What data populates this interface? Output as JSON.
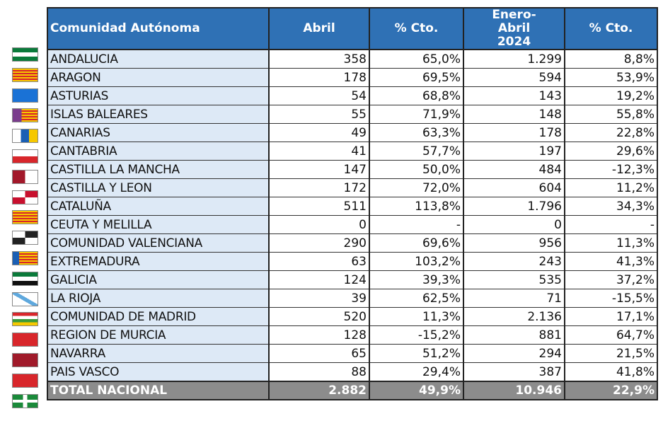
{
  "headers": {
    "name": "Comunidad Autónoma",
    "abril": "Abril",
    "cto1": "% Cto.",
    "enero_abril": "Enero-Abril 2024",
    "cto2": "% Cto."
  },
  "rows": [
    {
      "name": "ANDALUCIA",
      "abril": "358",
      "cto1": "65,0%",
      "ea": "1.299",
      "cto2": "8,8%",
      "flag": "linear-gradient(#0a7a3a 33%,#fff 33% 66%,#0a7a3a 66%)"
    },
    {
      "name": "ARAGON",
      "abril": "178",
      "cto1": "69,5%",
      "ea": "594",
      "cto2": "53,9%",
      "flag": "repeating-linear-gradient(#f6c800 0 2px,#d8262b 2px 4px)"
    },
    {
      "name": "ASTURIAS",
      "abril": "54",
      "cto1": "68,8%",
      "ea": "143",
      "cto2": "19,2%",
      "flag": "#1a72d6"
    },
    {
      "name": "ISLAS BALEARES",
      "abril": "55",
      "cto1": "71,9%",
      "ea": "148",
      "cto2": "55,8%",
      "flag": "linear-gradient(90deg,#7a3c8c 35%,transparent 35%),repeating-linear-gradient(#f6c800 0 2px,#d8262b 2px 4px)"
    },
    {
      "name": "CANARIAS",
      "abril": "49",
      "cto1": "63,3%",
      "ea": "178",
      "cto2": "22,8%",
      "flag": "linear-gradient(90deg,#fff 33%,#1a5fb4 33% 66%,#f6c800 66%)"
    },
    {
      "name": "CANTABRIA",
      "abril": "41",
      "cto1": "57,7%",
      "ea": "197",
      "cto2": "29,6%",
      "flag": "linear-gradient(#fff 50%,#d8262b 50%)"
    },
    {
      "name": "CASTILLA  LA MANCHA",
      "abril": "147",
      "cto1": "50,0%",
      "ea": "484",
      "cto2": "-12,3%",
      "flag": "linear-gradient(90deg,#a2182a 50%,#fff 50%)"
    },
    {
      "name": "CASTILLA Y LEON",
      "abril": "172",
      "cto1": "72,0%",
      "ea": "604",
      "cto2": "11,2%",
      "flag": "conic-gradient(#c8102e 0 25%,#fff 0 50%,#c8102e 0 75%,#fff 0)"
    },
    {
      "name": "CATALUÑA",
      "abril": "511",
      "cto1": "113,8%",
      "ea": "1.796",
      "cto2": "34,3%",
      "flag": "repeating-linear-gradient(#f6c800 0 2px,#d8262b 2px 4px)"
    },
    {
      "name": "CEUTA Y MELILLA",
      "abril": "0",
      "cto1": "-",
      "ea": "0",
      "cto2": "-",
      "flag": "conic-gradient(#222 0 25%,#fff 0 50%,#222 0 75%,#fff 0)"
    },
    {
      "name": "COMUNIDAD VALENCIANA",
      "abril": "290",
      "cto1": "69,6%",
      "ea": "956",
      "cto2": "11,3%",
      "flag": "linear-gradient(90deg,#1a5fb4 25%,transparent 25%),repeating-linear-gradient(#f6c800 0 2px,#d8262b 2px 4px)"
    },
    {
      "name": "EXTREMADURA",
      "abril": "63",
      "cto1": "103,2%",
      "ea": "243",
      "cto2": "41,3%",
      "flag": "linear-gradient(#0a7a3a 33%,#fff 33% 66%,#111 66%)"
    },
    {
      "name": "GALICIA",
      "abril": "124",
      "cto1": "39,3%",
      "ea": "535",
      "cto2": "37,2%",
      "flag": "linear-gradient(30deg,#fff 42%,#5fa8dd 42% 58%,#fff 58%)"
    },
    {
      "name": "LA RIOJA",
      "abril": "39",
      "cto1": "62,5%",
      "ea": "71",
      "cto2": "-15,5%",
      "flag": "linear-gradient(#d8262b 25%,#fff 25% 50%,#3a9a3a 50% 75%,#f6c800 75%)"
    },
    {
      "name": "COMUNIDAD DE MADRID",
      "abril": "520",
      "cto1": "11,3%",
      "ea": "2.136",
      "cto2": "17,1%",
      "flag": "#d8262b"
    },
    {
      "name": "REGION DE MURCIA",
      "abril": "128",
      "cto1": "-15,2%",
      "ea": "881",
      "cto2": "64,7%",
      "flag": "#a01a2a"
    },
    {
      "name": "NAVARRA",
      "abril": "65",
      "cto1": "51,2%",
      "ea": "294",
      "cto2": "21,5%",
      "flag": "#d8262b"
    },
    {
      "name": "PAIS VASCO",
      "abril": "88",
      "cto1": "29,4%",
      "ea": "387",
      "cto2": "41,8%",
      "flag": "linear-gradient(90deg,transparent 42%,#fff 42% 58%,transparent 58%),linear-gradient(transparent 40%,#fff 40% 60%,transparent 60%),#1a8a3a"
    }
  ],
  "total": {
    "name": "TOTAL NACIONAL",
    "abril": "2.882",
    "cto1": "49,9%",
    "ea": "10.946",
    "cto2": "22,9%"
  }
}
